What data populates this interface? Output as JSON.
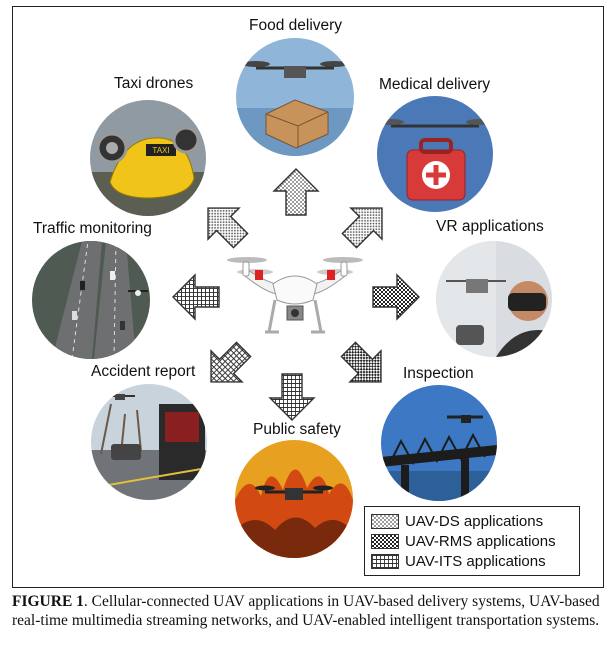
{
  "labels": {
    "food": "Food delivery",
    "medical": "Medical delivery",
    "taxi": "Taxi drones",
    "vr": "VR applications",
    "traffic": "Traffic monitoring",
    "accident": "Accident report",
    "inspection": "Inspection",
    "safety": "Public safety"
  },
  "legend": {
    "ds": "UAV-DS applications",
    "rms": "UAV-RMS applications",
    "its": "UAV-ITS applications"
  },
  "caption": {
    "figure": "FIGURE 1",
    "text": ". Cellular-connected UAV applications in UAV-based delivery systems, UAV-based real-time multimedia streaming networks, and UAV-enabled intelligent transportation systems."
  },
  "taxi_sign": "TAXI",
  "colors": {
    "frame": "#222222",
    "arrow_stroke": "#333333"
  }
}
